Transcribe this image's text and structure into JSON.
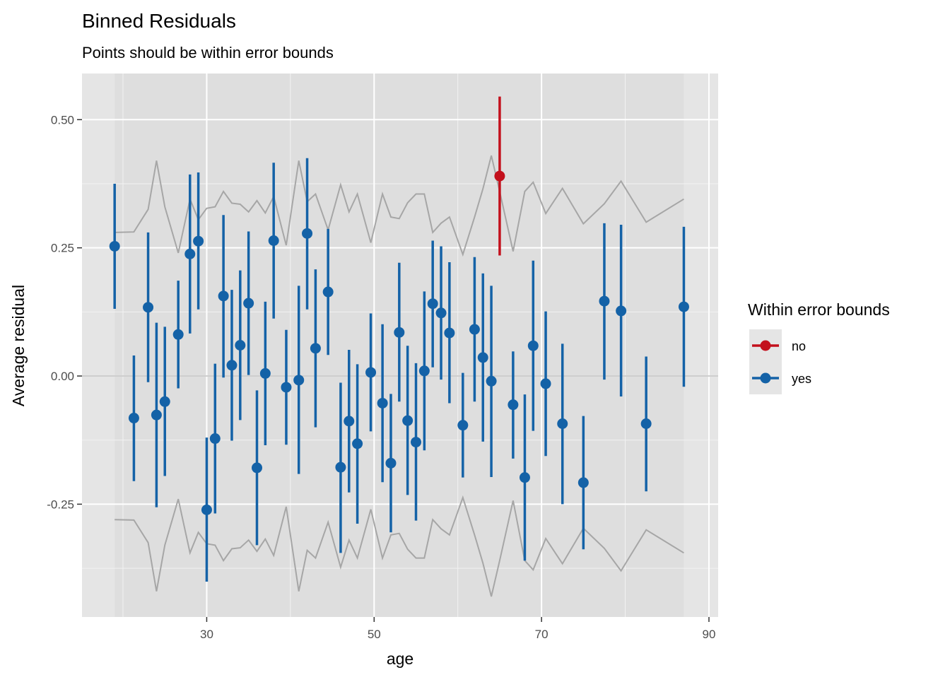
{
  "chart_data": {
    "type": "scatter",
    "title": "Binned Residuals",
    "subtitle": "Points should be within error bounds",
    "xlabel": "age",
    "ylabel": "Average residual",
    "xlim": [
      15.1,
      91.1
    ],
    "ylim": [
      -0.47,
      0.59
    ],
    "x_ticks": [
      30,
      50,
      70,
      90
    ],
    "x_tick_labels": [
      "30",
      "50",
      "70",
      "90"
    ],
    "y_ticks": [
      -0.25,
      0.0,
      0.25,
      0.5
    ],
    "y_tick_labels": [
      "-0.25",
      "0.00",
      "0.25",
      "0.50"
    ],
    "grid": true,
    "legend": {
      "title": "Within error bounds",
      "position": "right",
      "entries": [
        {
          "label": "no",
          "color": "#C3101C"
        },
        {
          "label": "yes",
          "color": "#1462A7"
        }
      ]
    },
    "colors": {
      "no": "#C3101C",
      "yes": "#1462A7",
      "bounds": "#A6A6A6",
      "panel": "#E5E5E5",
      "band": "#DEDEDE",
      "grid": "#FFFFFF",
      "zero_line": "#BDBDBD"
    },
    "error_band_x": [
      19,
      87
    ],
    "bounds_upper": [
      [
        19,
        0.28
      ],
      [
        21.3,
        0.281
      ],
      [
        23,
        0.325
      ],
      [
        24,
        0.42
      ],
      [
        25,
        0.33
      ],
      [
        26.6,
        0.24
      ],
      [
        28,
        0.345
      ],
      [
        29,
        0.305
      ],
      [
        30,
        0.327
      ],
      [
        31,
        0.33
      ],
      [
        32,
        0.36
      ],
      [
        33,
        0.337
      ],
      [
        34,
        0.335
      ],
      [
        35,
        0.32
      ],
      [
        36,
        0.342
      ],
      [
        37,
        0.318
      ],
      [
        38,
        0.35
      ],
      [
        39.5,
        0.255
      ],
      [
        41,
        0.42
      ],
      [
        42,
        0.34
      ],
      [
        43,
        0.355
      ],
      [
        44.5,
        0.285
      ],
      [
        46,
        0.373
      ],
      [
        47,
        0.32
      ],
      [
        48,
        0.355
      ],
      [
        49.6,
        0.26
      ],
      [
        51,
        0.355
      ],
      [
        52,
        0.31
      ],
      [
        53,
        0.307
      ],
      [
        54,
        0.338
      ],
      [
        55,
        0.355
      ],
      [
        56,
        0.355
      ],
      [
        57,
        0.28
      ],
      [
        58,
        0.298
      ],
      [
        59,
        0.31
      ],
      [
        60.6,
        0.237
      ],
      [
        62,
        0.31
      ],
      [
        63,
        0.365
      ],
      [
        64,
        0.43
      ],
      [
        65,
        0.36
      ],
      [
        66.6,
        0.243
      ],
      [
        68,
        0.36
      ],
      [
        69,
        0.378
      ],
      [
        70.5,
        0.317
      ],
      [
        72.5,
        0.366
      ],
      [
        75,
        0.297
      ],
      [
        77.5,
        0.336
      ],
      [
        79.5,
        0.38
      ],
      [
        82.5,
        0.3
      ],
      [
        87,
        0.345
      ]
    ],
    "bounds_lower": [
      [
        19,
        -0.28
      ],
      [
        21.3,
        -0.281
      ],
      [
        23,
        -0.325
      ],
      [
        24,
        -0.42
      ],
      [
        25,
        -0.33
      ],
      [
        26.6,
        -0.24
      ],
      [
        28,
        -0.345
      ],
      [
        29,
        -0.305
      ],
      [
        30,
        -0.327
      ],
      [
        31,
        -0.33
      ],
      [
        32,
        -0.36
      ],
      [
        33,
        -0.337
      ],
      [
        34,
        -0.335
      ],
      [
        35,
        -0.32
      ],
      [
        36,
        -0.342
      ],
      [
        37,
        -0.318
      ],
      [
        38,
        -0.35
      ],
      [
        39.5,
        -0.255
      ],
      [
        41,
        -0.42
      ],
      [
        42,
        -0.34
      ],
      [
        43,
        -0.355
      ],
      [
        44.5,
        -0.285
      ],
      [
        46,
        -0.373
      ],
      [
        47,
        -0.32
      ],
      [
        48,
        -0.355
      ],
      [
        49.6,
        -0.26
      ],
      [
        51,
        -0.355
      ],
      [
        52,
        -0.31
      ],
      [
        53,
        -0.307
      ],
      [
        54,
        -0.338
      ],
      [
        55,
        -0.355
      ],
      [
        56,
        -0.355
      ],
      [
        57,
        -0.28
      ],
      [
        58,
        -0.298
      ],
      [
        59,
        -0.31
      ],
      [
        60.6,
        -0.237
      ],
      [
        62,
        -0.31
      ],
      [
        63,
        -0.365
      ],
      [
        64,
        -0.43
      ],
      [
        65,
        -0.36
      ],
      [
        66.6,
        -0.243
      ],
      [
        68,
        -0.36
      ],
      [
        69,
        -0.378
      ],
      [
        70.5,
        -0.317
      ],
      [
        72.5,
        -0.366
      ],
      [
        75,
        -0.297
      ],
      [
        77.5,
        -0.336
      ],
      [
        79.5,
        -0.38
      ],
      [
        82.5,
        -0.3
      ],
      [
        87,
        -0.345
      ]
    ],
    "points": [
      {
        "x": 19,
        "y": 0.253,
        "lo": 0.131,
        "hi": 0.375,
        "group": "yes"
      },
      {
        "x": 21.3,
        "y": -0.082,
        "lo": -0.205,
        "hi": 0.04,
        "group": "yes"
      },
      {
        "x": 23,
        "y": 0.134,
        "lo": -0.012,
        "hi": 0.28,
        "group": "yes"
      },
      {
        "x": 24,
        "y": -0.076,
        "lo": -0.256,
        "hi": 0.104,
        "group": "yes"
      },
      {
        "x": 25,
        "y": -0.05,
        "lo": -0.195,
        "hi": 0.096,
        "group": "yes"
      },
      {
        "x": 26.6,
        "y": 0.081,
        "lo": -0.024,
        "hi": 0.186,
        "group": "yes"
      },
      {
        "x": 28,
        "y": 0.238,
        "lo": 0.083,
        "hi": 0.393,
        "group": "yes"
      },
      {
        "x": 29,
        "y": 0.263,
        "lo": 0.13,
        "hi": 0.397,
        "group": "yes"
      },
      {
        "x": 30,
        "y": -0.261,
        "lo": -0.401,
        "hi": -0.12,
        "group": "yes"
      },
      {
        "x": 31,
        "y": -0.122,
        "lo": -0.268,
        "hi": 0.024,
        "group": "yes"
      },
      {
        "x": 32,
        "y": 0.156,
        "lo": -0.003,
        "hi": 0.314,
        "group": "yes"
      },
      {
        "x": 33,
        "y": 0.021,
        "lo": -0.126,
        "hi": 0.168,
        "group": "yes"
      },
      {
        "x": 34,
        "y": 0.06,
        "lo": -0.086,
        "hi": 0.206,
        "group": "yes"
      },
      {
        "x": 35,
        "y": 0.142,
        "lo": 0.002,
        "hi": 0.282,
        "group": "yes"
      },
      {
        "x": 36,
        "y": -0.179,
        "lo": -0.33,
        "hi": -0.028,
        "group": "yes"
      },
      {
        "x": 37,
        "y": 0.005,
        "lo": -0.135,
        "hi": 0.145,
        "group": "yes"
      },
      {
        "x": 38,
        "y": 0.264,
        "lo": 0.112,
        "hi": 0.416,
        "group": "yes"
      },
      {
        "x": 39.5,
        "y": -0.022,
        "lo": -0.134,
        "hi": 0.09,
        "group": "yes"
      },
      {
        "x": 41,
        "y": -0.008,
        "lo": -0.191,
        "hi": 0.176,
        "group": "yes"
      },
      {
        "x": 42,
        "y": 0.278,
        "lo": 0.13,
        "hi": 0.425,
        "group": "yes"
      },
      {
        "x": 43,
        "y": 0.054,
        "lo": -0.1,
        "hi": 0.208,
        "group": "yes"
      },
      {
        "x": 44.5,
        "y": 0.164,
        "lo": 0.041,
        "hi": 0.287,
        "group": "yes"
      },
      {
        "x": 46,
        "y": -0.178,
        "lo": -0.345,
        "hi": -0.013,
        "group": "yes"
      },
      {
        "x": 47,
        "y": -0.088,
        "lo": -0.227,
        "hi": 0.051,
        "group": "yes"
      },
      {
        "x": 48,
        "y": -0.132,
        "lo": -0.288,
        "hi": 0.023,
        "group": "yes"
      },
      {
        "x": 49.6,
        "y": 0.007,
        "lo": -0.108,
        "hi": 0.122,
        "group": "yes"
      },
      {
        "x": 51,
        "y": -0.053,
        "lo": -0.207,
        "hi": 0.101,
        "group": "yes"
      },
      {
        "x": 52,
        "y": -0.17,
        "lo": -0.305,
        "hi": -0.035,
        "group": "yes"
      },
      {
        "x": 53,
        "y": 0.085,
        "lo": -0.05,
        "hi": 0.221,
        "group": "yes"
      },
      {
        "x": 54,
        "y": -0.087,
        "lo": -0.232,
        "hi": 0.059,
        "group": "yes"
      },
      {
        "x": 55,
        "y": -0.129,
        "lo": -0.282,
        "hi": 0.025,
        "group": "yes"
      },
      {
        "x": 56,
        "y": 0.01,
        "lo": -0.145,
        "hi": 0.165,
        "group": "yes"
      },
      {
        "x": 57,
        "y": 0.141,
        "lo": 0.017,
        "hi": 0.264,
        "group": "yes"
      },
      {
        "x": 58,
        "y": 0.123,
        "lo": -0.007,
        "hi": 0.253,
        "group": "yes"
      },
      {
        "x": 59,
        "y": 0.084,
        "lo": -0.053,
        "hi": 0.222,
        "group": "yes"
      },
      {
        "x": 60.6,
        "y": -0.096,
        "lo": -0.198,
        "hi": 0.006,
        "group": "yes"
      },
      {
        "x": 62,
        "y": 0.091,
        "lo": -0.05,
        "hi": 0.232,
        "group": "yes"
      },
      {
        "x": 63,
        "y": 0.036,
        "lo": -0.128,
        "hi": 0.2,
        "group": "yes"
      },
      {
        "x": 64,
        "y": -0.01,
        "lo": -0.197,
        "hi": 0.176,
        "group": "yes"
      },
      {
        "x": 65,
        "y": 0.39,
        "lo": 0.235,
        "hi": 0.545,
        "group": "no"
      },
      {
        "x": 66.6,
        "y": -0.056,
        "lo": -0.161,
        "hi": 0.048,
        "group": "yes"
      },
      {
        "x": 68,
        "y": -0.198,
        "lo": -0.36,
        "hi": -0.036,
        "group": "yes"
      },
      {
        "x": 69,
        "y": 0.059,
        "lo": -0.107,
        "hi": 0.225,
        "group": "yes"
      },
      {
        "x": 70.5,
        "y": -0.015,
        "lo": -0.156,
        "hi": 0.126,
        "group": "yes"
      },
      {
        "x": 72.5,
        "y": -0.093,
        "lo": -0.25,
        "hi": 0.063,
        "group": "yes"
      },
      {
        "x": 75,
        "y": -0.208,
        "lo": -0.338,
        "hi": -0.078,
        "group": "yes"
      },
      {
        "x": 77.5,
        "y": 0.146,
        "lo": -0.007,
        "hi": 0.298,
        "group": "yes"
      },
      {
        "x": 79.5,
        "y": 0.127,
        "lo": -0.04,
        "hi": 0.295,
        "group": "yes"
      },
      {
        "x": 82.5,
        "y": -0.093,
        "lo": -0.225,
        "hi": 0.038,
        "group": "yes"
      },
      {
        "x": 87,
        "y": 0.135,
        "lo": -0.021,
        "hi": 0.291,
        "group": "yes"
      }
    ]
  }
}
